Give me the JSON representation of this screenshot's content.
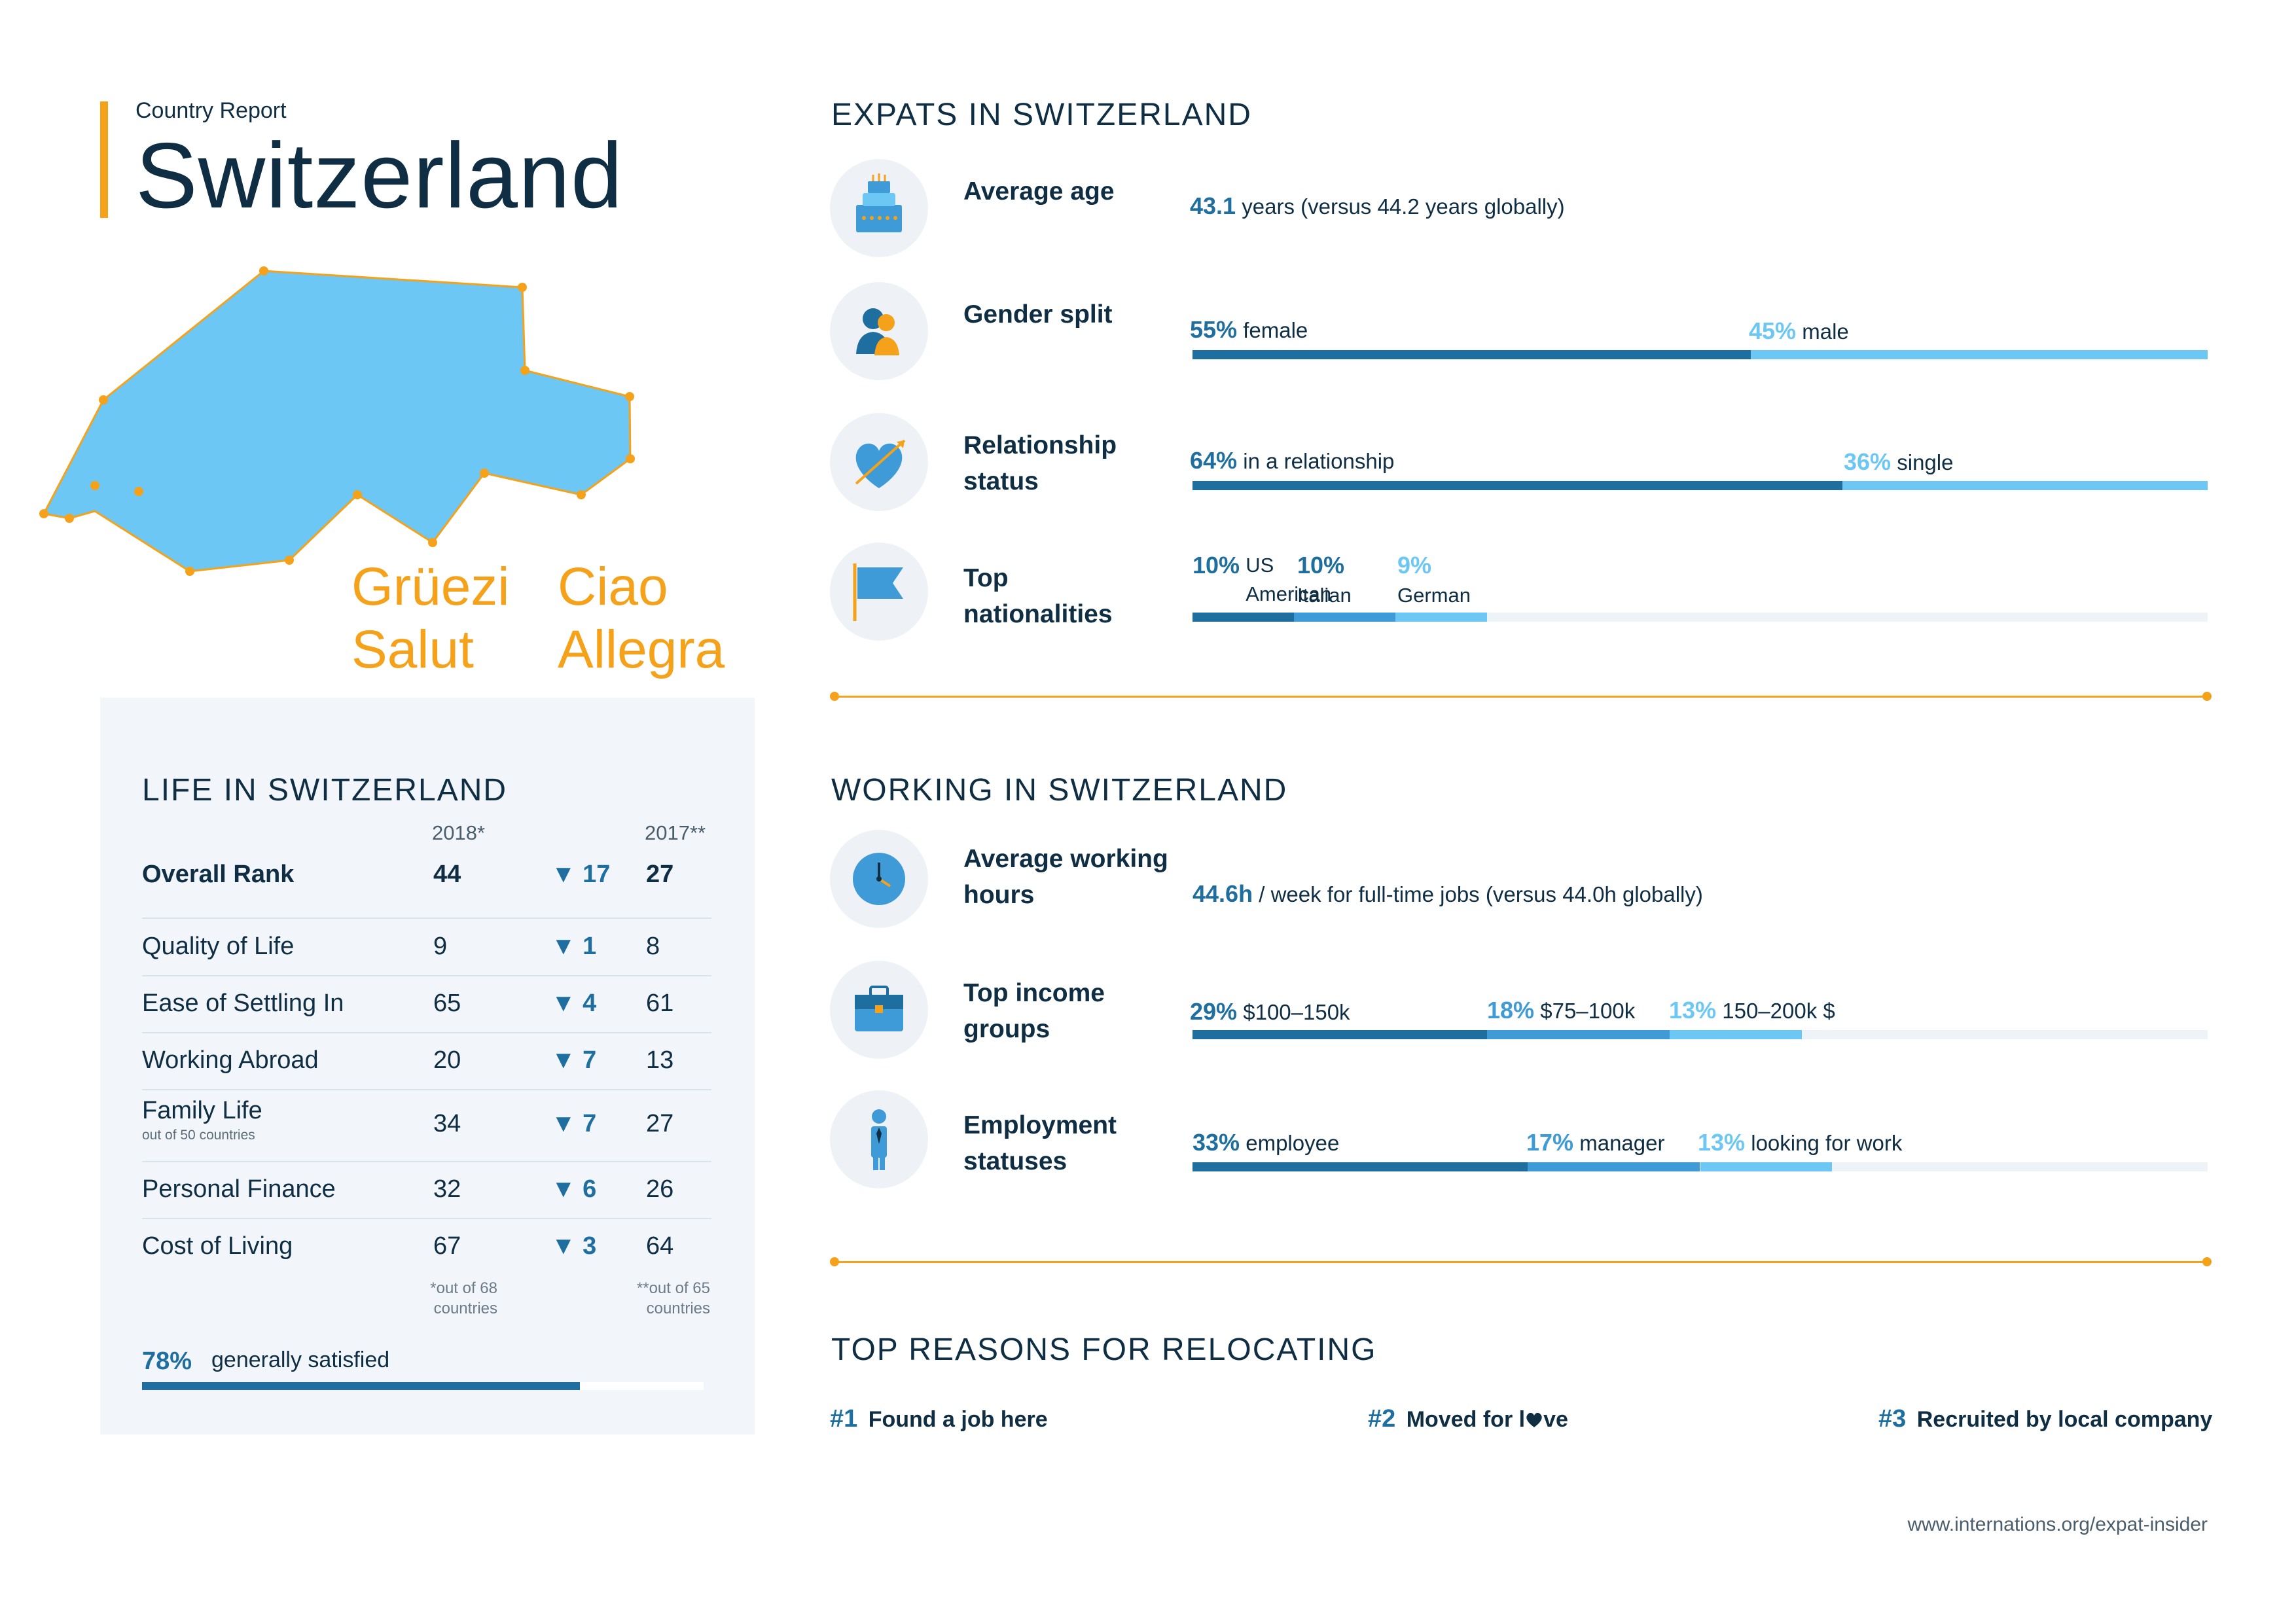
{
  "header": {
    "kicker": "Country Report",
    "title": "Switzerland",
    "greetings": [
      "Grüezi",
      "Ciao",
      "Salut",
      "Allegra"
    ]
  },
  "life": {
    "title": "LIFE IN SWITZERLAND",
    "col_a": "2018*",
    "col_b": "2017**",
    "rows": [
      {
        "label": "Overall Rank",
        "sub": "",
        "a": "44",
        "change": "▼ 17",
        "b": "27"
      },
      {
        "label": "Quality of Life",
        "sub": "",
        "a": "9",
        "change": "▼ 1",
        "b": "8"
      },
      {
        "label": "Ease of Settling In",
        "sub": "",
        "a": "65",
        "change": "▼ 4",
        "b": "61"
      },
      {
        "label": "Working Abroad",
        "sub": "",
        "a": "20",
        "change": "▼ 7",
        "b": "13"
      },
      {
        "label": "Family Life",
        "sub": "out of 50 countries",
        "a": "34",
        "change": "▼ 7",
        "b": "27"
      },
      {
        "label": "Personal Finance",
        "sub": "",
        "a": "32",
        "change": "▼ 6",
        "b": "26"
      },
      {
        "label": "Cost of Living",
        "sub": "",
        "a": "67",
        "change": "▼ 3",
        "b": "64"
      }
    ],
    "footnote_a": "*out of 68 countries",
    "footnote_b": "**out of 65 countries",
    "satisfied_pct": "78%",
    "satisfied_label": "generally satisfied",
    "satisfied_value": 78
  },
  "expats": {
    "title": "EXPATS IN SWITZERLAND",
    "age": {
      "label": "Average age",
      "value": "43.1",
      "text": "years (versus 44.2 years globally)"
    },
    "gender": {
      "label": "Gender split",
      "a_pct": "55%",
      "a_txt": "female",
      "b_pct": "45%",
      "b_txt": "male",
      "a_value": 55,
      "b_value": 45
    },
    "relationship": {
      "label": "Relationship status",
      "a_pct": "64%",
      "a_txt": "in a relationship",
      "b_pct": "36%",
      "b_txt": "single",
      "a_value": 64,
      "b_value": 36
    },
    "nationalities": {
      "label": "Top nationalities",
      "items": [
        {
          "pct": "10%",
          "name": "US American",
          "value": 10
        },
        {
          "pct": "10%",
          "name": "Italian",
          "value": 10
        },
        {
          "pct": "9%",
          "name": "German",
          "value": 9
        }
      ]
    }
  },
  "working": {
    "title": "WORKING IN SWITZERLAND",
    "hours": {
      "label": "Average working hours",
      "value": "44.6h",
      "text": "/ week for full-time jobs (versus 44.0h globally)"
    },
    "income": {
      "label": "Top income groups",
      "items": [
        {
          "pct": "29%",
          "txt": "$100–150k",
          "value": 29
        },
        {
          "pct": "18%",
          "txt": "$75–100k",
          "value": 18
        },
        {
          "pct": "13%",
          "txt": "150–200k $",
          "value": 13
        }
      ]
    },
    "employment": {
      "label": "Employment statuses",
      "items": [
        {
          "pct": "33%",
          "txt": "employee",
          "value": 33
        },
        {
          "pct": "17%",
          "txt": "manager",
          "value": 17
        },
        {
          "pct": "13%",
          "txt": "looking for work",
          "value": 13
        }
      ]
    }
  },
  "reasons": {
    "title": "TOP REASONS FOR RELOCATING",
    "items": [
      {
        "num": "#1",
        "txt": "Found a job here"
      },
      {
        "num": "#2",
        "txt": "Moved for l",
        "txt_end": "ve"
      },
      {
        "num": "#3",
        "txt": "Recruited by local company"
      }
    ]
  },
  "footer": {
    "url": "www.internations.org/expat-insider"
  },
  "colors": {
    "orange": "#f5a21a",
    "dark_blue": "#1e6fa0",
    "mid_blue": "#3e9bd7",
    "light_blue": "#6cc7f4",
    "navy": "#0f2e44",
    "map_fill": "#6cc7f4"
  }
}
